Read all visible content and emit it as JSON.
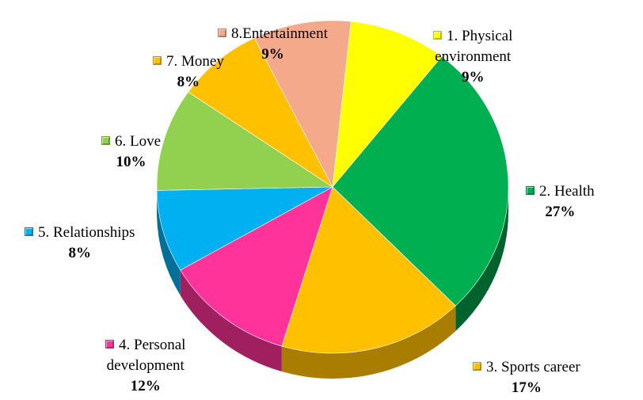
{
  "chart_data": {
    "type": "pie",
    "title": "",
    "slices": [
      {
        "label": "1. Physical environment",
        "name_lines": [
          "1. Physical",
          "environment"
        ],
        "value": 9,
        "value_label": "9%",
        "color": "#FFFF00",
        "side": "#BFBF00"
      },
      {
        "label": "2. Health",
        "name_lines": [
          "2. Health"
        ],
        "value": 27,
        "value_label": "27%",
        "color": "#00B050",
        "side": "#00622C"
      },
      {
        "label": "3. Sports career",
        "name_lines": [
          "3. Sports career"
        ],
        "value": 17,
        "value_label": "17%",
        "color": "#FFC000",
        "side": "#A87D00"
      },
      {
        "label": "4. Personal development",
        "name_lines": [
          "4. Personal",
          "development"
        ],
        "value": 12,
        "value_label": "12%",
        "color": "#FF3399",
        "side": "#A01F5F"
      },
      {
        "label": "5. Relationships",
        "name_lines": [
          "5. Relationships"
        ],
        "value": 8,
        "value_label": "8%",
        "color": "#00B0F0",
        "side": "#00709A"
      },
      {
        "label": "6. Love",
        "name_lines": [
          "6. Love"
        ],
        "value": 10,
        "value_label": "10%",
        "color": "#92D050",
        "side": "#5E8A30"
      },
      {
        "label": "7. Money",
        "name_lines": [
          "7. Money"
        ],
        "value": 8,
        "value_label": "8%",
        "color": "#FFC000",
        "side": "#A87D00"
      },
      {
        "label": "8.Entertainment",
        "name_lines": [
          "8.Entertainment"
        ],
        "value": 9,
        "value_label": "9%",
        "color": "#F4A98A",
        "side": "#A86E58"
      }
    ]
  }
}
